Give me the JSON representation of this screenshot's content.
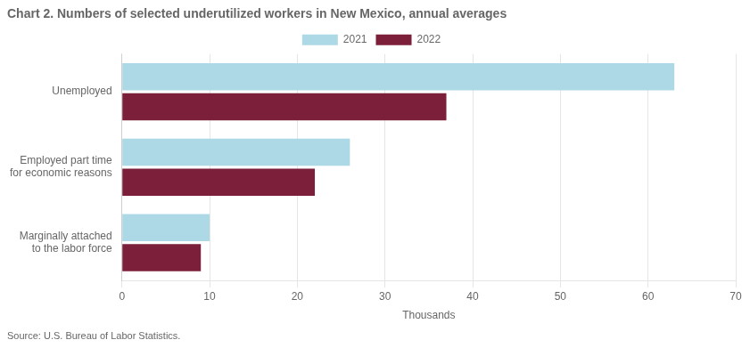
{
  "chart_data": {
    "type": "bar",
    "orientation": "horizontal",
    "title": "Chart 2. Numbers of selected underutilized workers in New Mexico, annual averages",
    "categories": [
      "Unemployed",
      "Employed part time\nfor economic reasons",
      "Marginally attached\nto the labor force"
    ],
    "series": [
      {
        "name": "2021",
        "color": "#add8e6",
        "values": [
          63,
          26,
          10
        ]
      },
      {
        "name": "2022",
        "color": "#7b1f3a",
        "values": [
          37,
          22,
          9
        ]
      }
    ],
    "xlabel": "Thousands",
    "xlim": [
      0,
      70
    ],
    "xticks": [
      0,
      10,
      20,
      30,
      40,
      50,
      60,
      70
    ],
    "grid": "x",
    "legend": "top",
    "annotations": [
      "Source: U.S. Bureau of Labor Statistics."
    ]
  }
}
